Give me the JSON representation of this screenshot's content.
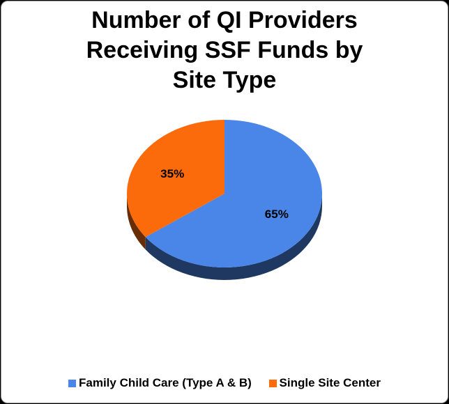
{
  "chart_data": {
    "type": "pie",
    "title_lines": [
      "Number of QI Providers",
      "Receiving SSF Funds by",
      "Site Type"
    ],
    "slices": [
      {
        "name": "Family Child Care (Type A & B)",
        "value": 65,
        "label": "65%",
        "color": "#4a86e8"
      },
      {
        "name": "Single Site Center",
        "value": 35,
        "label": "35%",
        "color": "#fb6b0b"
      }
    ],
    "legend": {
      "placement": "bottom"
    },
    "style": "3d"
  }
}
